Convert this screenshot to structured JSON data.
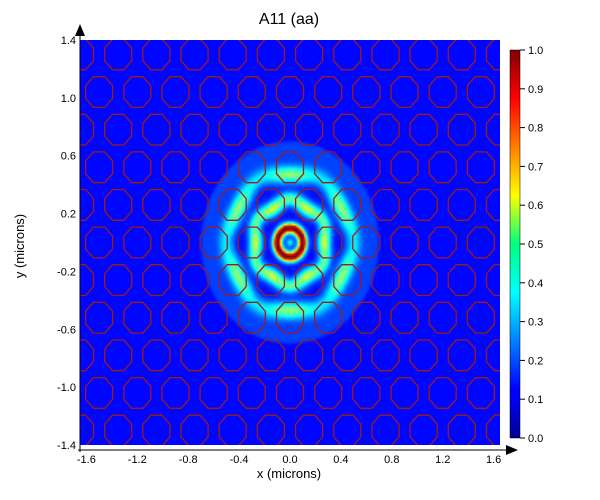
{
  "chart_data": {
    "type": "heatmap",
    "title": "A11 (aa)",
    "xlabel": "x (microns)",
    "ylabel": "y (microns)",
    "xlim": [
      -1.65,
      1.65
    ],
    "ylim": [
      -1.4,
      1.4
    ],
    "xticks": [
      "-1.6",
      "-1.2",
      "-0.8",
      "-0.4",
      "0.0",
      "0.4",
      "0.8",
      "1.2",
      "1.6"
    ],
    "yticks": [
      "1.4",
      "1.0",
      "0.6",
      "0.2",
      "-0.2",
      "-0.6",
      "-1.0",
      "-1.4"
    ],
    "colorbar": {
      "range": [
        0.0,
        1.0
      ],
      "ticks": [
        "1.0",
        "0.9",
        "0.8",
        "0.7",
        "0.6",
        "0.5",
        "0.4",
        "0.3",
        "0.2",
        "0.1",
        "0.0"
      ]
    },
    "colormap": "jet",
    "background_color": "#1a3faa",
    "overlay": {
      "shape": "octagon outlines on a hexagonal lattice",
      "color": "#a01a1a",
      "lattice_spacing_microns": 0.3,
      "row_spacing_microns": 0.26
    },
    "field_features": [
      {
        "feature": "central ring",
        "x": 0.0,
        "y": 0.0,
        "radius": 0.1,
        "peak_value": 1.0
      },
      {
        "feature": "central minimum",
        "x": 0.0,
        "y": 0.0,
        "value": 0.35
      },
      {
        "feature": "lobes inner",
        "radius": 0.27,
        "value": 0.55
      },
      {
        "feature": "lobes outer",
        "radius": 0.48,
        "value": 0.5
      }
    ]
  }
}
